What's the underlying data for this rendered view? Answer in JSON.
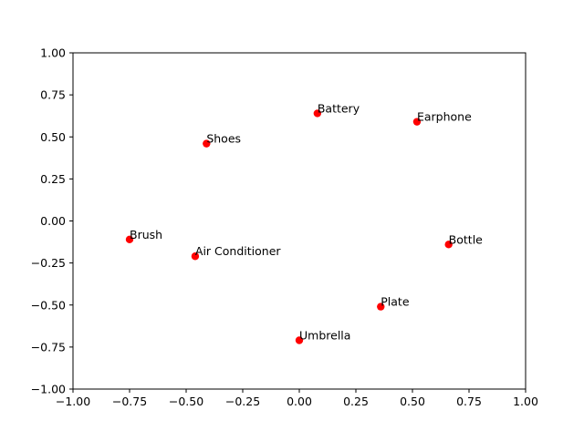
{
  "chart_data": {
    "type": "scatter",
    "title": "",
    "xlabel": "",
    "ylabel": "",
    "xlim": [
      -1.0,
      1.0
    ],
    "ylim": [
      -1.0,
      1.0
    ],
    "grid": false,
    "marker_color": "#ff0000",
    "xticks": [
      -1.0,
      -0.75,
      -0.5,
      -0.25,
      0.0,
      0.25,
      0.5,
      0.75,
      1.0
    ],
    "xtick_labels": [
      "−1.00",
      "−0.75",
      "−0.50",
      "−0.25",
      "0.00",
      "0.25",
      "0.50",
      "0.75",
      "1.00"
    ],
    "yticks": [
      -1.0,
      -0.75,
      -0.5,
      -0.25,
      0.0,
      0.25,
      0.5,
      0.75,
      1.0
    ],
    "ytick_labels": [
      "−1.00",
      "−0.75",
      "−0.50",
      "−0.25",
      "0.00",
      "0.25",
      "0.50",
      "0.75",
      "1.00"
    ],
    "points": [
      {
        "label": "Battery",
        "x": 0.08,
        "y": 0.64
      },
      {
        "label": "Earphone",
        "x": 0.52,
        "y": 0.59
      },
      {
        "label": "Shoes",
        "x": -0.41,
        "y": 0.46
      },
      {
        "label": "Brush",
        "x": -0.75,
        "y": -0.11
      },
      {
        "label": "Air Conditioner",
        "x": -0.46,
        "y": -0.21
      },
      {
        "label": "Bottle",
        "x": 0.66,
        "y": -0.14
      },
      {
        "label": "Plate",
        "x": 0.36,
        "y": -0.51
      },
      {
        "label": "Umbrella",
        "x": 0.0,
        "y": -0.71
      }
    ]
  }
}
